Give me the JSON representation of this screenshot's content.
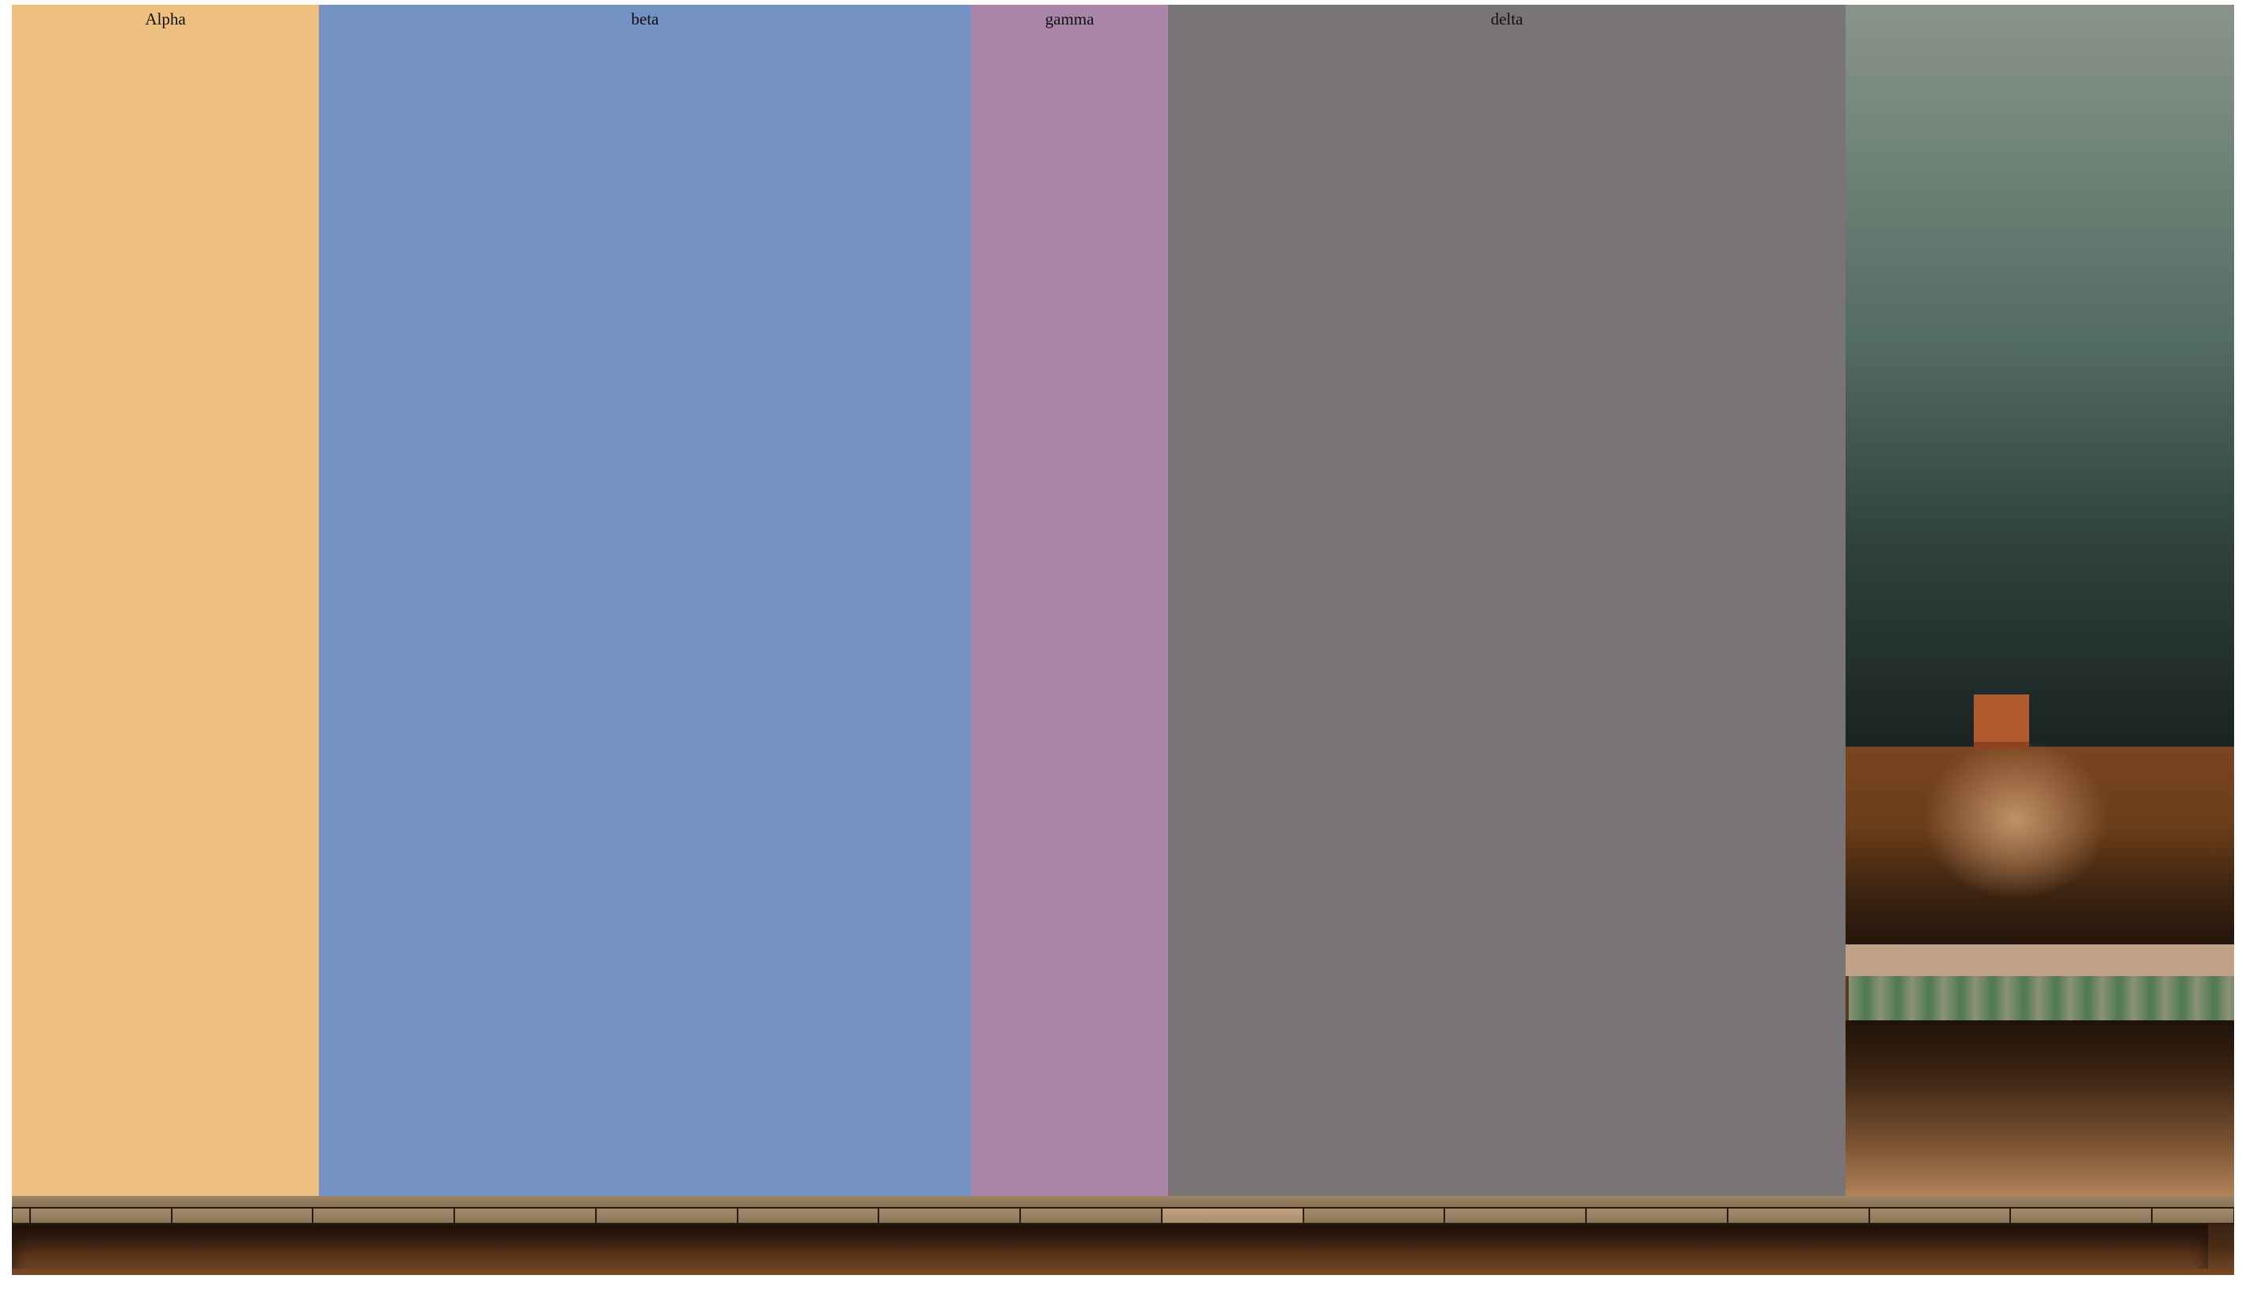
{
  "columns": [
    {
      "id": "alpha",
      "label": "Alpha",
      "color": "#edc07f"
    },
    {
      "id": "beta",
      "label": "beta",
      "color": "#7391c3"
    },
    {
      "id": "gamma",
      "label": "gamma",
      "color": "#a986a7"
    },
    {
      "id": "delta",
      "label": "delta",
      "color": "#797576"
    }
  ],
  "tiles": {
    "active_index": 9,
    "count": 17
  },
  "colors": {
    "scene_block": "#b15a2e",
    "shelf": "#9c8466",
    "floor": "#4a2c16"
  }
}
